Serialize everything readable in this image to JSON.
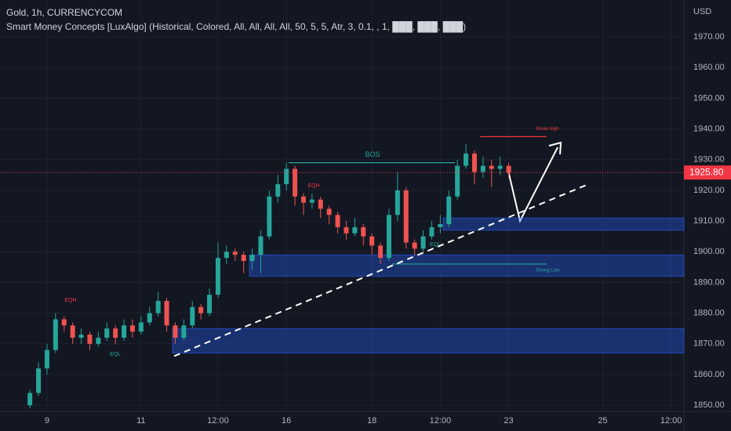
{
  "chart_data": {
    "type": "candlestick",
    "title": "Gold, 1h, CURRENCYCOM",
    "subtitle": "Smart Money Concepts [LuxAlgo] (Historical, Colored, All, All, All, All, 50, 5, 5, Atr, 3, 0.1, , 1, ███, ███, ███)",
    "currency": "USD",
    "categories": [
      null,
      null,
      null,
      null,
      null,
      "9",
      null,
      null,
      null,
      null,
      null,
      null,
      null,
      null,
      null,
      null,
      "11",
      null,
      null,
      null,
      null,
      null,
      null,
      null,
      null,
      "12:00",
      null,
      null,
      null,
      null,
      null,
      null,
      null,
      "16",
      null,
      null,
      null,
      null,
      null,
      null,
      null,
      null,
      null,
      "18",
      null,
      null,
      null,
      null,
      null,
      null,
      null,
      "12:00",
      null,
      null,
      null,
      null,
      null,
      null,
      null,
      "23",
      null,
      null,
      null,
      null,
      null,
      null,
      null,
      null,
      null,
      null,
      "25",
      null,
      null,
      null,
      null,
      null,
      null,
      null,
      "12:00",
      null
    ],
    "open": [
      null,
      null,
      null,
      1850,
      1854,
      1862,
      1868,
      1878,
      1876,
      1872,
      1873,
      1870,
      1872,
      1875,
      1872,
      1876,
      1874,
      1877,
      1880,
      1884,
      1876,
      1872,
      1876,
      1882,
      1880,
      1886,
      1898,
      1900,
      1899,
      1897,
      1899,
      1905,
      1918,
      1922,
      1927,
      1918,
      1916,
      1917,
      1914,
      1912,
      1908,
      1906,
      1908,
      1905,
      1902,
      1898,
      1912,
      1920,
      1903,
      1901,
      1905,
      1908,
      1909,
      1918,
      1928,
      1932,
      1926,
      1928,
      1927,
      1928,
      null,
      null,
      null,
      null,
      null,
      null,
      null,
      null,
      null,
      null,
      null,
      null,
      null,
      null,
      null,
      null,
      null,
      null,
      null,
      null
    ],
    "high": [
      null,
      null,
      null,
      1855,
      1864,
      1870,
      1880,
      1879,
      1877,
      1875,
      1874,
      1874,
      1877,
      1876,
      1878,
      1878,
      1879,
      1882,
      1887,
      1885,
      1877,
      1878,
      1884,
      1883,
      1888,
      1903,
      1902,
      1901,
      1900,
      1901,
      1907,
      1920,
      1925,
      1929,
      1928,
      1919,
      1919,
      1918,
      1915,
      1913,
      1910,
      1911,
      1909,
      1906,
      1903,
      1914,
      1926,
      1921,
      1904,
      1907,
      1910,
      1912,
      1920,
      1930,
      1935,
      1933,
      1931,
      1930,
      1931,
      1929,
      null,
      null,
      null,
      null,
      null,
      null,
      null,
      null,
      null,
      null,
      null,
      null,
      null,
      null,
      null,
      null,
      null,
      null,
      null,
      null
    ],
    "low": [
      null,
      null,
      null,
      1849,
      1853,
      1860,
      1867,
      1874,
      1870,
      1870,
      1868,
      1869,
      1871,
      1870,
      1871,
      1872,
      1873,
      1876,
      1879,
      1874,
      1870,
      1871,
      1875,
      1878,
      1879,
      1885,
      1896,
      1897,
      1893,
      1894,
      1893,
      1904,
      1916,
      1920,
      1915,
      1912,
      1914,
      1911,
      1909,
      1906,
      1904,
      1905,
      1902,
      1899,
      1896,
      1897,
      1910,
      1901,
      1899,
      1900,
      1904,
      1906,
      1908,
      1917,
      1927,
      1922,
      1924,
      1921,
      1925,
      1924,
      null,
      null,
      null,
      null,
      null,
      null,
      null,
      null,
      null,
      null,
      null,
      null,
      null,
      null,
      null,
      null,
      null,
      null,
      null,
      null
    ],
    "close": [
      null,
      null,
      null,
      1854,
      1862,
      1868,
      1878,
      1876,
      1872,
      1873,
      1870,
      1872,
      1875,
      1872,
      1876,
      1874,
      1877,
      1880,
      1884,
      1876,
      1872,
      1876,
      1882,
      1880,
      1886,
      1898,
      1900,
      1899,
      1897,
      1899,
      1905,
      1918,
      1922,
      1927,
      1918,
      1916,
      1917,
      1914,
      1912,
      1908,
      1906,
      1908,
      1905,
      1902,
      1898,
      1912,
      1920,
      1903,
      1901,
      1905,
      1908,
      1909,
      1918,
      1928,
      1932,
      1926,
      1928,
      1927,
      1928,
      1925.8,
      null,
      null,
      null,
      null,
      null,
      null,
      null,
      null,
      null,
      null,
      null,
      null,
      null,
      null,
      null,
      null,
      null,
      null,
      null,
      null
    ],
    "up_color": "#26a69a",
    "down_color": "#ef5350",
    "ylim": [
      1848,
      1982
    ],
    "yticks": [
      {
        "value": 1850,
        "label": "1850.00"
      },
      {
        "value": 1860,
        "label": "1860.00"
      },
      {
        "value": 1870,
        "label": "1870.00"
      },
      {
        "value": 1880,
        "label": "1880.00"
      },
      {
        "value": 1890,
        "label": "1890.00"
      },
      {
        "value": 1900,
        "label": "1900.00"
      },
      {
        "value": 1910,
        "label": "1910.00"
      },
      {
        "value": 1920,
        "label": "1920.00"
      },
      {
        "value": 1930,
        "label": "1930.00"
      },
      {
        "value": 1940,
        "label": "1940.00"
      },
      {
        "value": 1950,
        "label": "1950.00"
      },
      {
        "value": 1960,
        "label": "1960.00"
      },
      {
        "value": 1970,
        "label": "1970.00"
      }
    ],
    "last_price": {
      "value": 1925.8,
      "label": "1925.80"
    },
    "zones": [
      {
        "low": 1907,
        "high": 1911
      },
      {
        "low": 1892,
        "high": 1899
      },
      {
        "low": 1867,
        "high": 1875
      }
    ],
    "levels": [
      {
        "label": "BOS",
        "value": 1929,
        "color": "#26a69a"
      },
      {
        "label": "Weak High",
        "value": 1937.5,
        "color": "#f23645"
      },
      {
        "label": "Strong Low",
        "value": 1896,
        "color": "#26a69a"
      }
    ],
    "annotations": [
      {
        "text": "EQH",
        "color": "#f23645"
      },
      {
        "text": "EQH",
        "color": "#f23645"
      },
      {
        "text": "EQL",
        "color": "#26a69a"
      },
      {
        "text": "EQL",
        "color": "#26a69a"
      }
    ],
    "trendline": [
      1866,
      1922
    ]
  }
}
